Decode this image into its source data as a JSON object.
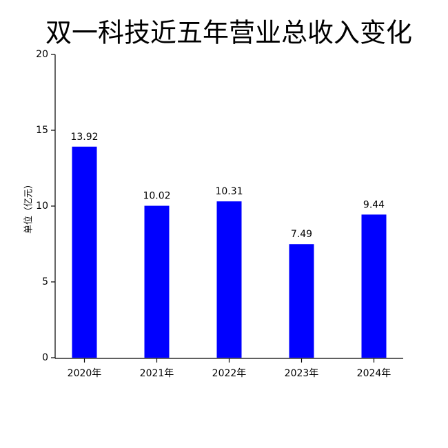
{
  "chart_data": {
    "type": "bar",
    "title": "双一科技近五年营业总收入变化",
    "y_label": "单位（亿元）",
    "categories": [
      "2020年",
      "2021年",
      "2022年",
      "2023年",
      "2024年"
    ],
    "values": [
      13.92,
      10.02,
      10.31,
      7.49,
      9.44
    ],
    "color": "#0000ff",
    "ylim": [
      0,
      20
    ],
    "yticks": [
      0,
      5,
      10,
      15,
      20
    ],
    "grid": false
  }
}
